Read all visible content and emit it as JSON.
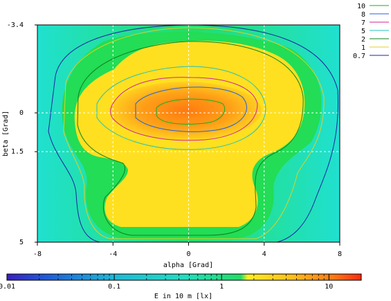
{
  "chart_data": {
    "type": "heatmap",
    "title": "",
    "xlabel": "alpha [Grad]",
    "ylabel": "beta [Grad]",
    "colorbar_label": "E in 10 m [lx]",
    "xlim": [
      -8,
      8
    ],
    "ylim": [
      -3.4,
      5
    ],
    "y_inverted": true,
    "x_ticks": [
      -8,
      -4,
      0,
      4,
      8
    ],
    "x_tick_labels": [
      "-8",
      "-4",
      "0",
      "4",
      "8"
    ],
    "y_ticks": [
      -3.4,
      0,
      1.5,
      5
    ],
    "y_tick_labels": [
      "-3.4",
      "0",
      "1.5",
      "5"
    ],
    "grid": true,
    "colorbar_scale": "log",
    "colorbar_range": [
      0.01,
      20
    ],
    "colorbar_ticks": [
      0.01,
      0.1,
      1,
      10
    ],
    "colorbar_tick_labels": [
      "0.01",
      "0.1",
      "1",
      "10"
    ],
    "colorbar_colors": [
      "#3a1fc0",
      "#1f5ad8",
      "#1fb8d8",
      "#22ddc0",
      "#22dd66",
      "#44e022",
      "#ffee22",
      "#ffc01a",
      "#ff7a14",
      "#ff2a10"
    ],
    "legend_placement": "top-right",
    "contours": [
      {
        "level": 10,
        "label": "10",
        "color": "#10b020"
      },
      {
        "level": 8,
        "label": "8",
        "color": "#2060e0"
      },
      {
        "level": 7,
        "label": "7",
        "color": "#d020a0"
      },
      {
        "level": 5,
        "label": "5",
        "color": "#20c0c0"
      },
      {
        "level": 2,
        "label": "2",
        "color": "#108020"
      },
      {
        "level": 1,
        "label": "1",
        "color": "#e0d020"
      },
      {
        "level": 0.7,
        "label": "0.7",
        "color": "#2020a0"
      }
    ]
  }
}
